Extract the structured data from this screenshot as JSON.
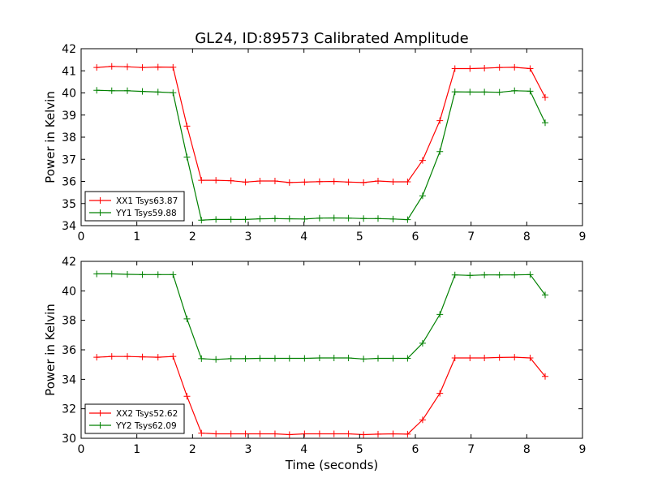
{
  "figure": {
    "title": "GL24, ID:89573 Calibrated Amplitude",
    "xlabel": "Time (seconds)"
  },
  "chart_data": [
    {
      "type": "line",
      "title": "GL24, ID:89573 Calibrated Amplitude",
      "xlabel": "",
      "ylabel": "Power in Kelvin",
      "xlim": [
        0,
        9
      ],
      "ylim": [
        34,
        42
      ],
      "xticks": [
        0,
        1,
        2,
        3,
        4,
        5,
        6,
        7,
        8,
        9
      ],
      "yticks": [
        34,
        35,
        36,
        37,
        38,
        39,
        40,
        41,
        42
      ],
      "grid": false,
      "legend_position": "lower-left",
      "x": [
        0.28,
        0.55,
        0.83,
        1.1,
        1.38,
        1.65,
        1.9,
        2.16,
        2.42,
        2.69,
        2.95,
        3.21,
        3.48,
        3.74,
        4.01,
        4.28,
        4.54,
        4.8,
        5.07,
        5.33,
        5.6,
        5.86,
        6.13,
        6.44,
        6.71,
        6.98,
        7.24,
        7.51,
        7.78,
        8.06,
        8.33
      ],
      "series": [
        {
          "name": "XX1 Tsys63.87",
          "color": "#ff0000",
          "values": [
            41.15,
            41.2,
            41.18,
            41.15,
            41.17,
            41.16,
            38.5,
            36.05,
            36.05,
            36.03,
            35.97,
            36.02,
            36.02,
            35.95,
            35.97,
            35.99,
            36.0,
            35.97,
            35.95,
            36.02,
            35.98,
            35.98,
            36.95,
            38.75,
            41.1,
            41.1,
            41.12,
            41.15,
            41.16,
            41.1,
            39.8
          ]
        },
        {
          "name": "YY1 Tsys59.88",
          "color": "#008000",
          "values": [
            40.12,
            40.1,
            40.1,
            40.07,
            40.04,
            40.01,
            37.1,
            34.25,
            34.28,
            34.28,
            34.28,
            34.31,
            34.32,
            34.31,
            34.3,
            34.34,
            34.35,
            34.34,
            34.32,
            34.32,
            34.3,
            34.27,
            35.35,
            37.35,
            40.05,
            40.04,
            40.04,
            40.03,
            40.1,
            40.08,
            38.65
          ]
        }
      ]
    },
    {
      "type": "line",
      "title": "",
      "xlabel": "Time (seconds)",
      "ylabel": "Power in Kelvin",
      "xlim": [
        0,
        9
      ],
      "ylim": [
        30,
        42
      ],
      "xticks": [
        0,
        1,
        2,
        3,
        4,
        5,
        6,
        7,
        8,
        9
      ],
      "yticks": [
        30,
        32,
        34,
        36,
        38,
        40,
        42
      ],
      "grid": false,
      "legend_position": "lower-left",
      "x": [
        0.28,
        0.55,
        0.83,
        1.1,
        1.38,
        1.65,
        1.9,
        2.16,
        2.42,
        2.69,
        2.95,
        3.21,
        3.48,
        3.74,
        4.01,
        4.28,
        4.54,
        4.8,
        5.07,
        5.33,
        5.6,
        5.86,
        6.13,
        6.44,
        6.71,
        6.98,
        7.24,
        7.51,
        7.78,
        8.06,
        8.33
      ],
      "series": [
        {
          "name": "XX2 Tsys52.62",
          "color": "#ff0000",
          "values": [
            35.5,
            35.55,
            35.55,
            35.52,
            35.5,
            35.55,
            32.85,
            30.35,
            30.3,
            30.3,
            30.3,
            30.3,
            30.3,
            30.25,
            30.3,
            30.3,
            30.3,
            30.3,
            30.25,
            30.28,
            30.3,
            30.28,
            31.25,
            33.05,
            35.45,
            35.45,
            35.45,
            35.48,
            35.5,
            35.45,
            34.2
          ]
        },
        {
          "name": "YY2 Tsys62.09",
          "color": "#008000",
          "values": [
            41.15,
            41.15,
            41.12,
            41.1,
            41.1,
            41.1,
            38.1,
            35.4,
            35.35,
            35.4,
            35.4,
            35.42,
            35.42,
            35.42,
            35.42,
            35.45,
            35.45,
            35.45,
            35.38,
            35.42,
            35.42,
            35.42,
            36.45,
            38.4,
            41.08,
            41.05,
            41.08,
            41.08,
            41.08,
            41.1,
            39.72
          ]
        }
      ]
    }
  ]
}
